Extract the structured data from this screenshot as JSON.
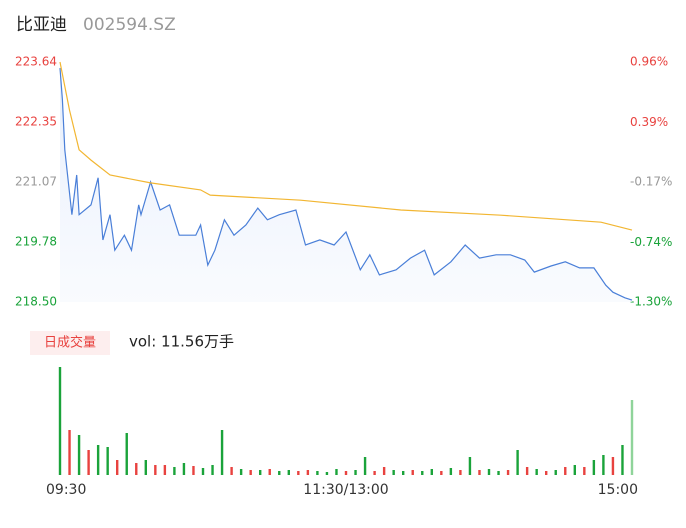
{
  "chart_data": {
    "type": "line",
    "title": "比亚迪",
    "subtitle": "002594.SZ",
    "xlim": [
      0,
      240
    ],
    "xticks": [
      {
        "value": 0,
        "label": "09:30"
      },
      {
        "value": 120,
        "label": "11:30/13:00"
      },
      {
        "value": 240,
        "label": "15:00"
      }
    ],
    "ylim": [
      218.5,
      223.64
    ],
    "yticks": [
      {
        "value": 223.64,
        "label": "223.64"
      },
      {
        "value": 222.35,
        "label": "222.35"
      },
      {
        "value": 221.07,
        "label": "221.07"
      },
      {
        "value": 219.78,
        "label": "219.78"
      },
      {
        "value": 218.5,
        "label": "218.50"
      }
    ],
    "ytick_colors": [
      "#e8423f",
      "#e8423f",
      "#999999",
      "#1aa33a",
      "#1aa33a"
    ],
    "y2lim": [
      -1.3,
      0.96
    ],
    "y2ticks": [
      {
        "value": 0.96,
        "label": "0.96%"
      },
      {
        "value": 0.39,
        "label": "0.39%"
      },
      {
        "value": -0.17,
        "label": "-0.17%"
      },
      {
        "value": -0.74,
        "label": "-0.74%"
      },
      {
        "value": -1.3,
        "label": "-1.30%"
      }
    ],
    "series": [
      {
        "color": "#4a7fd8",
        "x": [
          0,
          1,
          2,
          5,
          7,
          8,
          13,
          16,
          18,
          21,
          23,
          27,
          30,
          33,
          34,
          38,
          42,
          46,
          50,
          57,
          59,
          62,
          65,
          69,
          73,
          78,
          83,
          87,
          92,
          99,
          103,
          109,
          115,
          120,
          126,
          130,
          134,
          141,
          147,
          153,
          157,
          164,
          170,
          176,
          183,
          189,
          195,
          199,
          206,
          212,
          218,
          224,
          229,
          232,
          237,
          240
        ],
        "values": [
          223.51,
          222.83,
          221.76,
          220.37,
          221.22,
          220.37,
          220.58,
          221.16,
          219.83,
          220.37,
          219.61,
          219.93,
          219.61,
          220.58,
          220.37,
          221.07,
          220.47,
          220.58,
          219.93,
          219.93,
          220.15,
          219.29,
          219.61,
          220.26,
          219.93,
          220.15,
          220.51,
          220.26,
          220.37,
          220.47,
          219.72,
          219.83,
          219.72,
          220.0,
          219.19,
          219.51,
          219.08,
          219.19,
          219.44,
          219.61,
          219.08,
          219.36,
          219.72,
          219.44,
          219.51,
          219.51,
          219.4,
          219.14,
          219.27,
          219.36,
          219.23,
          219.23,
          218.86,
          218.71,
          218.59,
          218.54
        ]
      },
      {
        "color": "#f2b632",
        "x": [
          0,
          4,
          8,
          13,
          21,
          38,
          59,
          63,
          101,
          143,
          185,
          227,
          240
        ],
        "values": [
          223.64,
          222.61,
          221.76,
          221.54,
          221.22,
          221.05,
          220.9,
          220.79,
          220.68,
          220.47,
          220.36,
          220.21,
          220.04
        ]
      }
    ],
    "volume": {
      "button": "日成交量",
      "label": "vol: 11.56万手",
      "ylim": [
        0,
        110
      ],
      "x": [
        0,
        4,
        8,
        12,
        16,
        20,
        24,
        28,
        32,
        36,
        40,
        44,
        48,
        52,
        56,
        60,
        64,
        68,
        72,
        76,
        80,
        84,
        88,
        92,
        96,
        100,
        104,
        108,
        112,
        116,
        120,
        124,
        128,
        132,
        136,
        140,
        144,
        148,
        152,
        156,
        160,
        164,
        168,
        172,
        176,
        180,
        184,
        188,
        192,
        196,
        200,
        204,
        208,
        212,
        216,
        220,
        224,
        228,
        232,
        236,
        240
      ],
      "values": [
        108,
        45,
        40,
        25,
        30,
        28,
        15,
        42,
        12,
        15,
        10,
        10,
        8,
        12,
        9,
        7,
        10,
        45,
        8,
        6,
        5,
        5,
        6,
        4,
        5,
        4,
        5,
        4,
        3,
        6,
        4,
        5,
        18,
        4,
        8,
        5,
        4,
        5,
        4,
        6,
        4,
        7,
        5,
        18,
        5,
        6,
        4,
        5,
        25,
        8,
        6,
        4,
        5,
        8,
        10,
        8,
        15,
        20,
        18,
        30,
        75
      ],
      "colors": [
        "#1aa33a",
        "#e8423f",
        "#1aa33a",
        "#e8423f",
        "#1aa33a",
        "#1aa33a",
        "#e8423f",
        "#1aa33a",
        "#e8423f",
        "#1aa33a",
        "#e8423f",
        "#e8423f",
        "#1aa33a",
        "#1aa33a",
        "#e8423f",
        "#1aa33a",
        "#1aa33a",
        "#1aa33a",
        "#e8423f",
        "#1aa33a",
        "#e8423f",
        "#1aa33a",
        "#e8423f",
        "#1aa33a",
        "#1aa33a",
        "#e8423f",
        "#e8423f",
        "#1aa33a",
        "#1aa33a",
        "#1aa33a",
        "#e8423f",
        "#1aa33a",
        "#1aa33a",
        "#e8423f",
        "#e8423f",
        "#1aa33a",
        "#1aa33a",
        "#e8423f",
        "#1aa33a",
        "#1aa33a",
        "#e8423f",
        "#1aa33a",
        "#e8423f",
        "#1aa33a",
        "#e8423f",
        "#1aa33a",
        "#1aa33a",
        "#e8423f",
        "#1aa33a",
        "#e8423f",
        "#1aa33a",
        "#e8423f",
        "#1aa33a",
        "#e8423f",
        "#1aa33a",
        "#e8423f",
        "#1aa33a",
        "#1aa33a",
        "#e8423f",
        "#1aa33a",
        "#8fd49a"
      ]
    }
  }
}
